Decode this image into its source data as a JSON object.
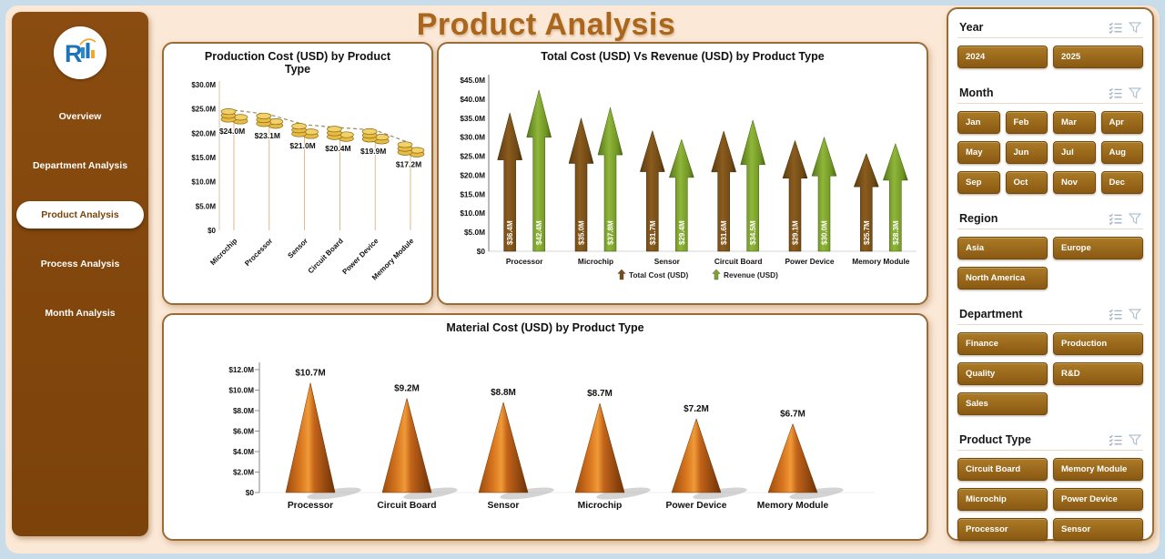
{
  "app": {
    "title": "Product Analysis"
  },
  "sidebar": {
    "items": [
      {
        "label": "Overview",
        "active": false
      },
      {
        "label": "Department Analysis",
        "active": false
      },
      {
        "label": "Product Analysis",
        "active": true
      },
      {
        "label": "Process Analysis",
        "active": false
      },
      {
        "label": "Month Analysis",
        "active": false
      }
    ]
  },
  "slicers": [
    {
      "title": "Year",
      "cols": 2,
      "options": [
        "2024",
        "2025"
      ]
    },
    {
      "title": "Month",
      "cols": 4,
      "options": [
        "Jan",
        "Feb",
        "Mar",
        "Apr",
        "May",
        "Jun",
        "Jul",
        "Aug",
        "Sep",
        "Oct",
        "Nov",
        "Dec"
      ]
    },
    {
      "title": "Region",
      "cols": 2,
      "options": [
        "Asia",
        "Europe",
        "North America"
      ]
    },
    {
      "title": "Department",
      "cols": 2,
      "options": [
        "Finance",
        "Production",
        "Quality",
        "R&D",
        "Sales"
      ]
    },
    {
      "title": "Product Type",
      "cols": 2,
      "options": [
        "Circuit Board",
        "Memory Module",
        "Microchip",
        "Power Device",
        "Processor",
        "Sensor"
      ]
    }
  ],
  "icons": {
    "slicer_header": [
      "multi-select-icon",
      "clear-filter-icon"
    ],
    "logo": "company-logo"
  },
  "colors": {
    "sidebar_brown": "#82450c",
    "button_brown": "#9a6a1c",
    "total_cost_brown": "#7a4f16",
    "revenue_green": "#7fa62a",
    "coin_gold": "#e7bc45",
    "pyramid_orange": "#d9771f",
    "page_background": "#fbe8d6",
    "outer_frame": "#c9dcea"
  },
  "chart_data": [
    {
      "type": "line",
      "title": "Production Cost (USD) by Product Type",
      "categories": [
        "Microchip",
        "Processor",
        "Sensor",
        "Circuit Board",
        "Power Device",
        "Memory Module"
      ],
      "values": [
        24.0,
        23.1,
        21.0,
        20.4,
        19.9,
        17.2
      ],
      "labels": [
        "$24.0M",
        "$23.1M",
        "$21.0M",
        "$20.4M",
        "$19.9M",
        "$17.2M"
      ],
      "ylim": [
        0,
        30
      ],
      "ytick_step": 5,
      "yticks": [
        "$0",
        "$5.0M",
        "$10.0M",
        "$15.0M",
        "$20.0M",
        "$25.0M",
        "$30.0M"
      ],
      "marker": "coin-stack",
      "line_style": "dashed",
      "xlabel": "",
      "ylabel": ""
    },
    {
      "type": "bar",
      "bar_shape": "arrow",
      "title": "Total Cost (USD) Vs Revenue (USD) by Product Type",
      "categories": [
        "Processor",
        "Microchip",
        "Sensor",
        "Circuit Board",
        "Power Device",
        "Memory Module"
      ],
      "series": [
        {
          "name": "Total Cost (USD)",
          "color": "#7a4f16",
          "values": [
            36.4,
            35.0,
            31.7,
            31.6,
            29.1,
            25.7
          ],
          "labels": [
            "$36.4M",
            "$35.0M",
            "$31.7M",
            "$31.6M",
            "$29.1M",
            "$25.7M"
          ]
        },
        {
          "name": "Revenue (USD)",
          "color": "#7fa62a",
          "values": [
            42.4,
            37.8,
            29.4,
            34.5,
            30.0,
            28.3
          ],
          "labels": [
            "$42.4M",
            "$37.8M",
            "$29.4M",
            "$34.5M",
            "$30.0M",
            "$28.3M"
          ]
        }
      ],
      "ylim": [
        0,
        45
      ],
      "ytick_step": 5,
      "yticks": [
        "$0",
        "$5.0M",
        "$10.0M",
        "$15.0M",
        "$20.0M",
        "$25.0M",
        "$30.0M",
        "$35.0M",
        "$40.0M",
        "$45.0M"
      ],
      "legend_position": "bottom",
      "xlabel": "",
      "ylabel": ""
    },
    {
      "type": "bar",
      "bar_shape": "pyramid",
      "title": "Material Cost (USD) by Product Type",
      "categories": [
        "Processor",
        "Circuit Board",
        "Sensor",
        "Microchip",
        "Power Device",
        "Memory Module"
      ],
      "values": [
        10.7,
        9.2,
        8.8,
        8.7,
        7.2,
        6.7
      ],
      "labels": [
        "$10.7M",
        "$9.2M",
        "$8.8M",
        "$8.7M",
        "$7.2M",
        "$6.7M"
      ],
      "ylim": [
        0,
        12
      ],
      "ytick_step": 2,
      "yticks": [
        "$0",
        "$2.0M",
        "$4.0M",
        "$6.0M",
        "$8.0M",
        "$10.0M",
        "$12.0M"
      ],
      "xlabel": "",
      "ylabel": ""
    }
  ]
}
